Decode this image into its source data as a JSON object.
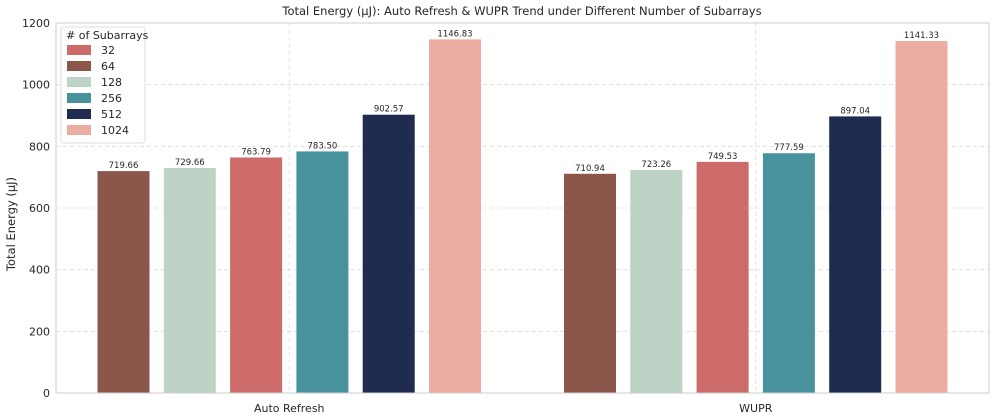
{
  "chart_data": {
    "type": "bar",
    "title": "Total Energy (μJ): Auto Refresh & WUPR Trend under Different Number of Subarrays",
    "xlabel": "",
    "ylabel": "Total Energy (μJ)",
    "ylim": [
      0,
      1200
    ],
    "yticks": [
      0,
      200,
      400,
      600,
      800,
      1000,
      1200
    ],
    "grid": true,
    "legend": {
      "title": "# of Subarrays",
      "placement": "top-left",
      "entries": [
        "32",
        "64",
        "128",
        "256",
        "512",
        "1024"
      ]
    },
    "categories": [
      "Auto Refresh",
      "WUPR"
    ],
    "series": [
      {
        "name": "64",
        "color": "#8c574a",
        "values": [
          719.66,
          710.94
        ]
      },
      {
        "name": "128",
        "color": "#bdd3c5",
        "values": [
          729.66,
          723.26
        ]
      },
      {
        "name": "32",
        "color": "#cd6b6a",
        "values": [
          763.79,
          749.53
        ]
      },
      {
        "name": "256",
        "color": "#48929e",
        "values": [
          783.5,
          777.59
        ]
      },
      {
        "name": "512",
        "color": "#1f2c50",
        "values": [
          902.57,
          897.04
        ]
      },
      {
        "name": "1024",
        "color": "#ebada1",
        "values": [
          1146.83,
          1141.33
        ]
      }
    ],
    "data_labels": [
      [
        "719.66",
        "729.66",
        "763.79",
        "783.50",
        "902.57",
        "1146.83"
      ],
      [
        "710.94",
        "723.26",
        "749.53",
        "777.59",
        "897.04",
        "1141.33"
      ]
    ]
  },
  "legend_colors": {
    "32": "#cd6b6a",
    "64": "#8c574a",
    "128": "#bdd3c5",
    "256": "#48929e",
    "512": "#1f2c50",
    "1024": "#ebada1"
  }
}
